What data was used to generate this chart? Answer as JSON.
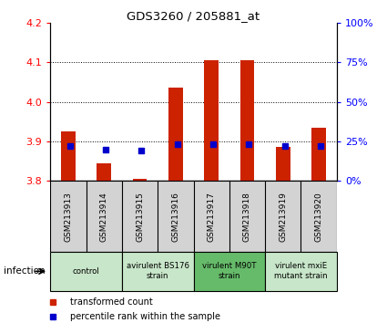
{
  "title": "GDS3260 / 205881_at",
  "samples": [
    "GSM213913",
    "GSM213914",
    "GSM213915",
    "GSM213916",
    "GSM213917",
    "GSM213918",
    "GSM213919",
    "GSM213920"
  ],
  "red_values": [
    3.925,
    3.845,
    3.805,
    4.035,
    4.105,
    4.105,
    3.885,
    3.935
  ],
  "blue_values": [
    22,
    20,
    19,
    23,
    23,
    23,
    22,
    22
  ],
  "ylim_left": [
    3.8,
    4.2
  ],
  "ylim_right": [
    0,
    100
  ],
  "yticks_left": [
    3.8,
    3.9,
    4.0,
    4.1,
    4.2
  ],
  "yticks_right": [
    0,
    25,
    50,
    75,
    100
  ],
  "groups": [
    {
      "label": "control",
      "spans": [
        0,
        2
      ],
      "color": "#c8e6c9"
    },
    {
      "label": "avirulent BS176\nstrain",
      "spans": [
        2,
        4
      ],
      "color": "#c8e6c9"
    },
    {
      "label": "virulent M90T\nstrain",
      "spans": [
        4,
        6
      ],
      "color": "#66bb6a"
    },
    {
      "label": "virulent mxiE\nmutant strain",
      "spans": [
        6,
        8
      ],
      "color": "#c8e6c9"
    }
  ],
  "red_color": "#cc2200",
  "blue_color": "#0000cc",
  "bar_width": 0.4,
  "legend_red": "transformed count",
  "legend_blue": "percentile rank within the sample",
  "infection_label": "infection",
  "base_value": 3.8,
  "grid_lines": [
    3.9,
    4.0,
    4.1
  ],
  "tick_bg": "#d3d3d3"
}
